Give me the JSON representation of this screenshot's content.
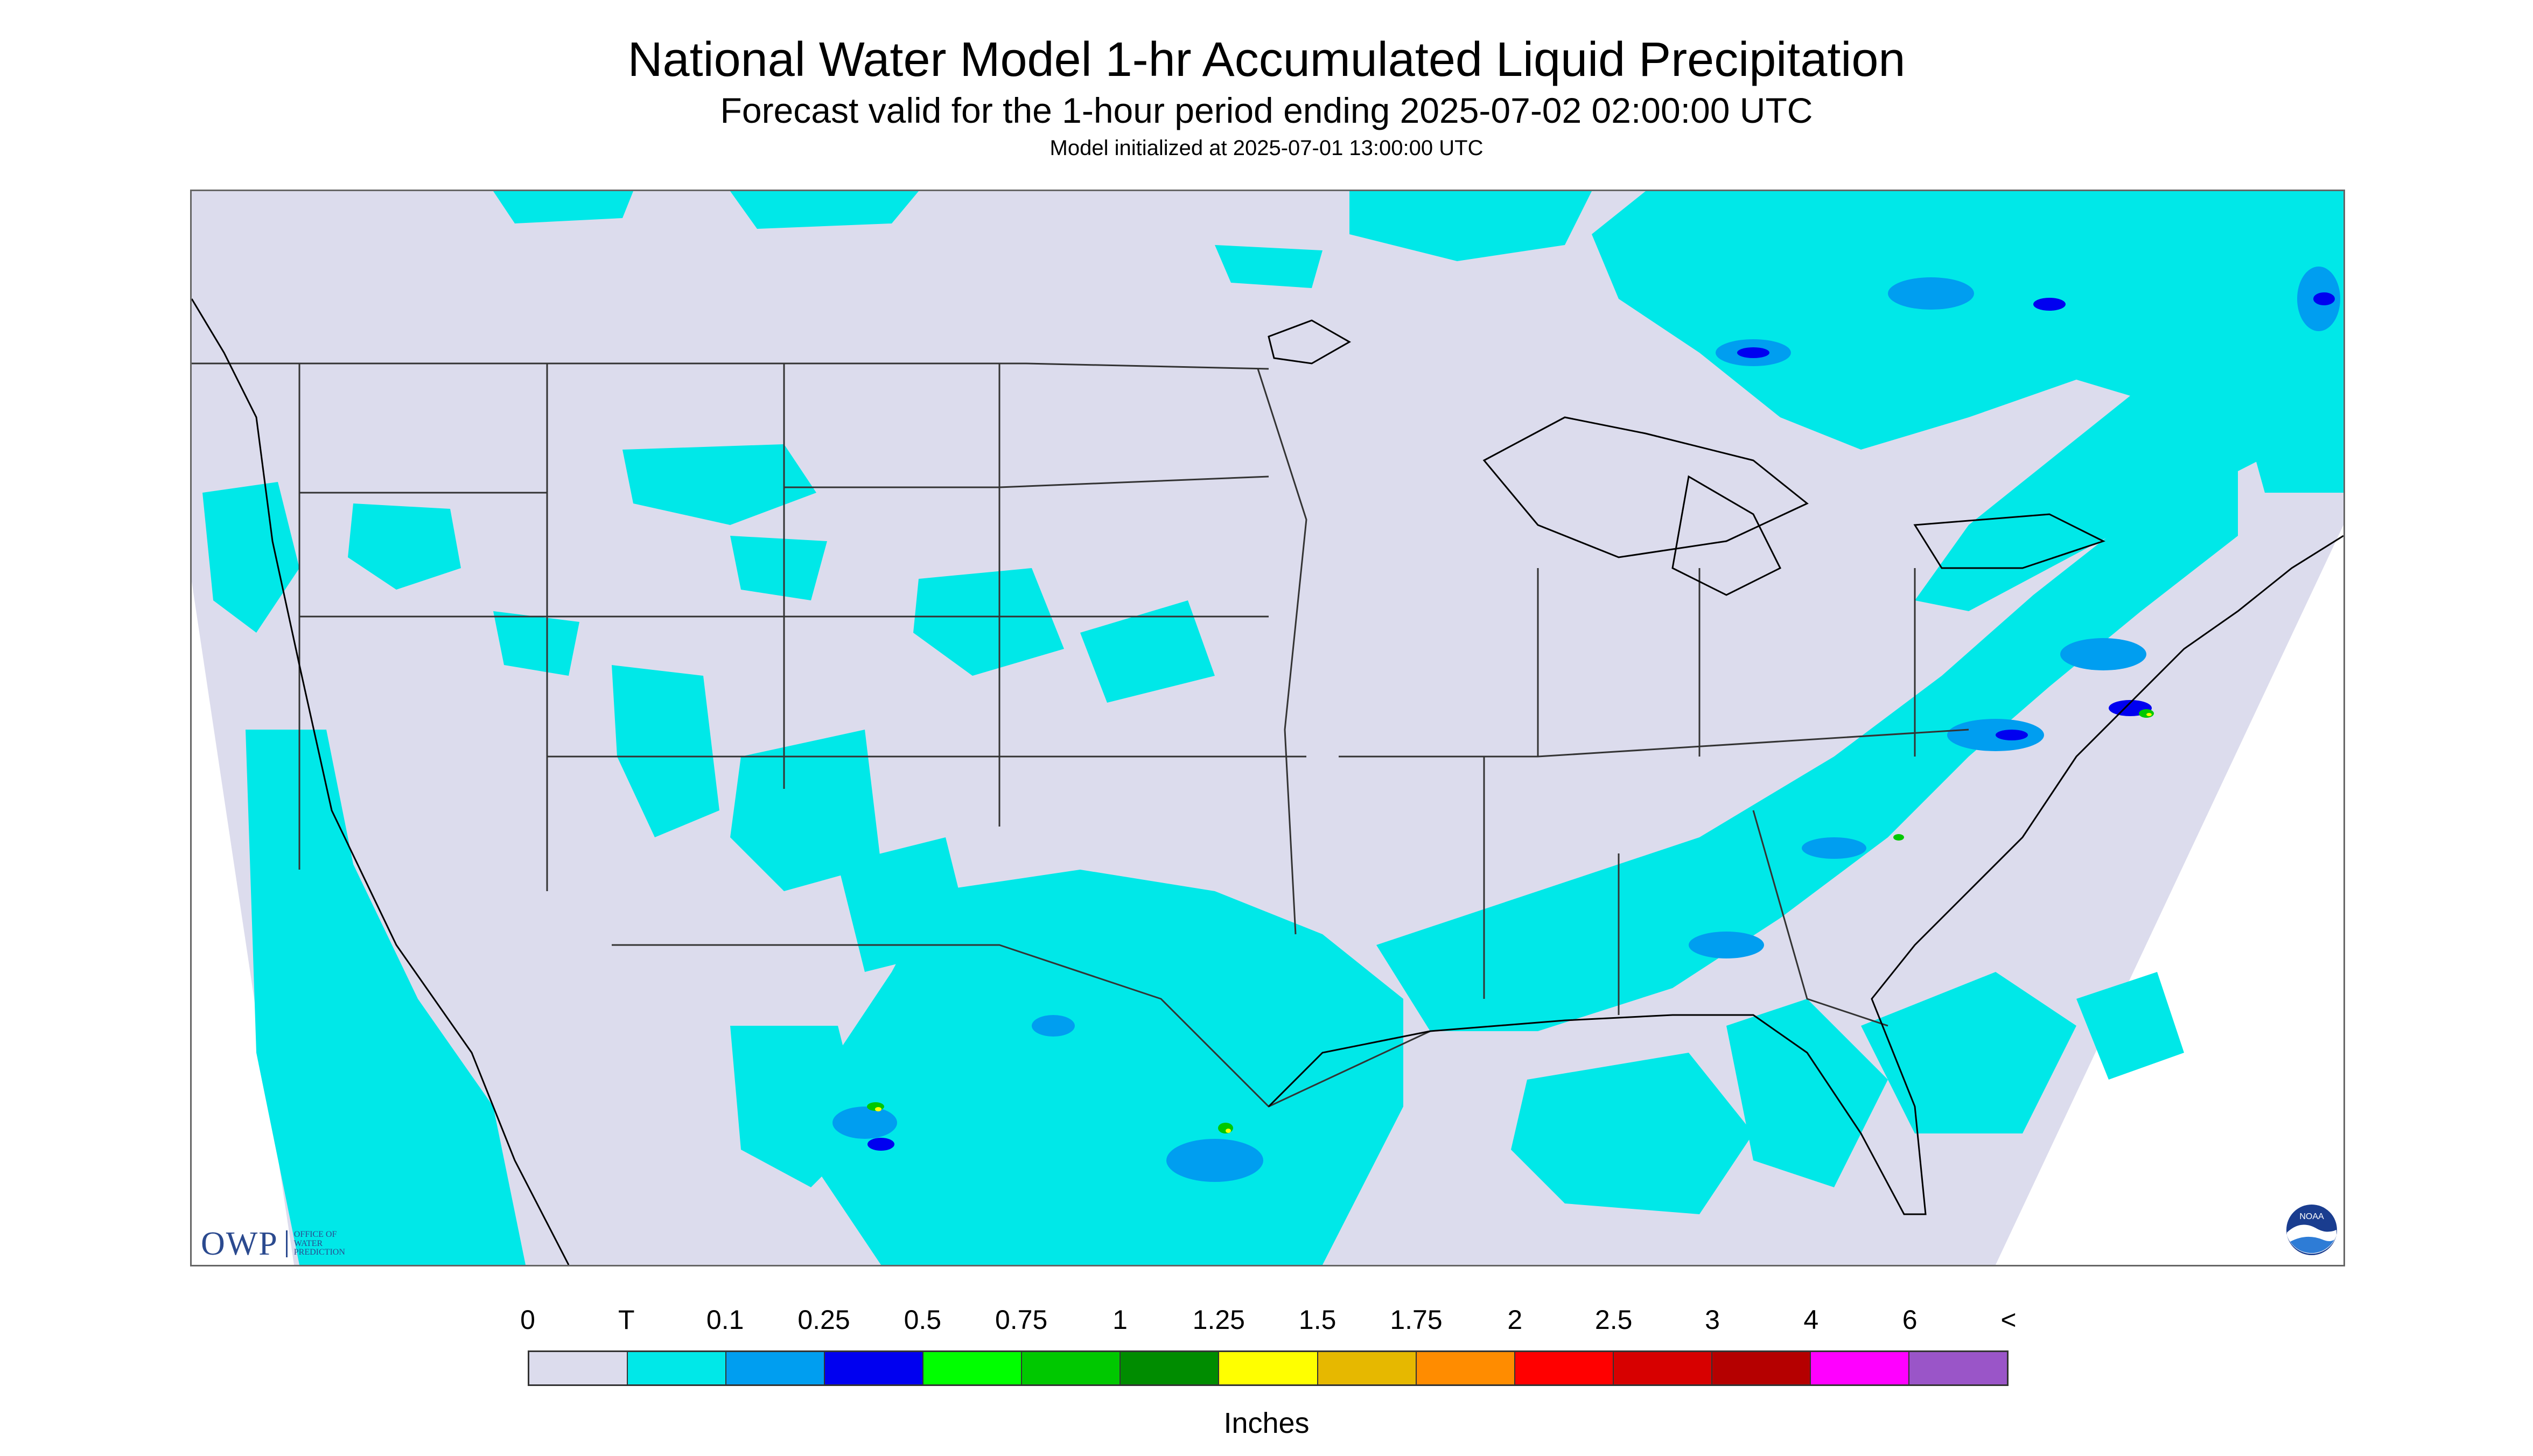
{
  "title": "National Water Model 1-hr Accumulated Liquid Precipitation",
  "subtitle": "Forecast valid for the 1-hour period ending 2025-07-02 02:00:00 UTC",
  "model_init": "Model initialized at 2025-07-01 13:00:00 UTC",
  "map": {
    "region": "Continental United States",
    "background_color": "#dcdced",
    "outside_domain_color": "#ffffff"
  },
  "logos": {
    "owp_abbrev": "OWP",
    "owp_full": "OFFICE OF\nWATER\nPREDICTION",
    "noaa_text": "NOAA",
    "noaa_icon": "noaa-logo-icon"
  },
  "legend": {
    "labels": [
      "0",
      "T",
      "0.1",
      "0.25",
      "0.5",
      "0.75",
      "1",
      "1.25",
      "1.5",
      "1.75",
      "2",
      "2.5",
      "3",
      "4",
      "6",
      "<"
    ],
    "colors": [
      "#dcdced",
      "#00e8e8",
      "#009ef0",
      "#0000f0",
      "#00ff00",
      "#00c800",
      "#008c00",
      "#ffff00",
      "#e6b800",
      "#ff8c00",
      "#ff0000",
      "#d70000",
      "#b50000",
      "#ff00ff",
      "#9a55c8"
    ],
    "units": "Inches"
  }
}
